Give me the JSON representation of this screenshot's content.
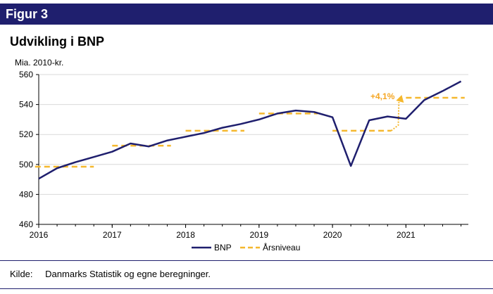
{
  "header": {
    "figure_label": "Figur 3",
    "title": "Udvikling i BNP"
  },
  "source": {
    "label": "Kilde:",
    "text": "Danmarks Statistik og egne beregninger."
  },
  "colors": {
    "header_bg": "#1f1f6e",
    "bnp": "#1f1f6e",
    "aarsniveau": "#f5b82e",
    "annotation": "#f5a623"
  },
  "chart_data": {
    "type": "line",
    "ylabel": "Mia. 2010-kr.",
    "ylim": [
      460,
      560
    ],
    "yticks": [
      460,
      480,
      500,
      520,
      540,
      560
    ],
    "xlim": [
      2016,
      2021.85
    ],
    "xticks": [
      2016,
      2017,
      2018,
      2019,
      2020,
      2021
    ],
    "xtick_labels": [
      "2016",
      "2017",
      "2018",
      "2019",
      "2020",
      "2021"
    ],
    "annotation": {
      "text": "+4,1%"
    },
    "legend": {
      "position": "bottom",
      "entries": [
        "BNP",
        "Årsniveau"
      ]
    },
    "series": [
      {
        "name": "BNP",
        "style": "solid",
        "x": [
          2016.0,
          2016.25,
          2016.5,
          2016.75,
          2017.0,
          2017.25,
          2017.5,
          2017.75,
          2018.0,
          2018.25,
          2018.5,
          2018.75,
          2019.0,
          2019.25,
          2019.5,
          2019.75,
          2020.0,
          2020.25,
          2020.5,
          2020.75,
          2021.0,
          2021.25,
          2021.5,
          2021.75
        ],
        "values": [
          490.5,
          497.5,
          501.5,
          505.0,
          508.5,
          514.0,
          512.0,
          516.0,
          518.5,
          521.0,
          524.5,
          527.0,
          530.0,
          534.0,
          536.0,
          535.0,
          531.5,
          499.0,
          529.5,
          532.0,
          530.5,
          543.0,
          549.0,
          555.5
        ]
      },
      {
        "name": "Årsniveau",
        "style": "dashed",
        "segments": [
          {
            "x": [
              2015.95,
              2016.75
            ],
            "value": 498.5
          },
          {
            "x": [
              2017.0,
              2017.8
            ],
            "value": 512.5
          },
          {
            "x": [
              2018.0,
              2018.8
            ],
            "value": 522.5
          },
          {
            "x": [
              2019.0,
              2019.8
            ],
            "value": 534.0
          },
          {
            "x": [
              2020.0,
              2020.8
            ],
            "value": 522.5
          },
          {
            "x": [
              2021.0,
              2021.8
            ],
            "value": 544.5
          }
        ],
        "connector": {
          "x": [
            2020.8,
            2021.0
          ],
          "values": [
            522.5,
            544.5
          ]
        }
      }
    ]
  }
}
